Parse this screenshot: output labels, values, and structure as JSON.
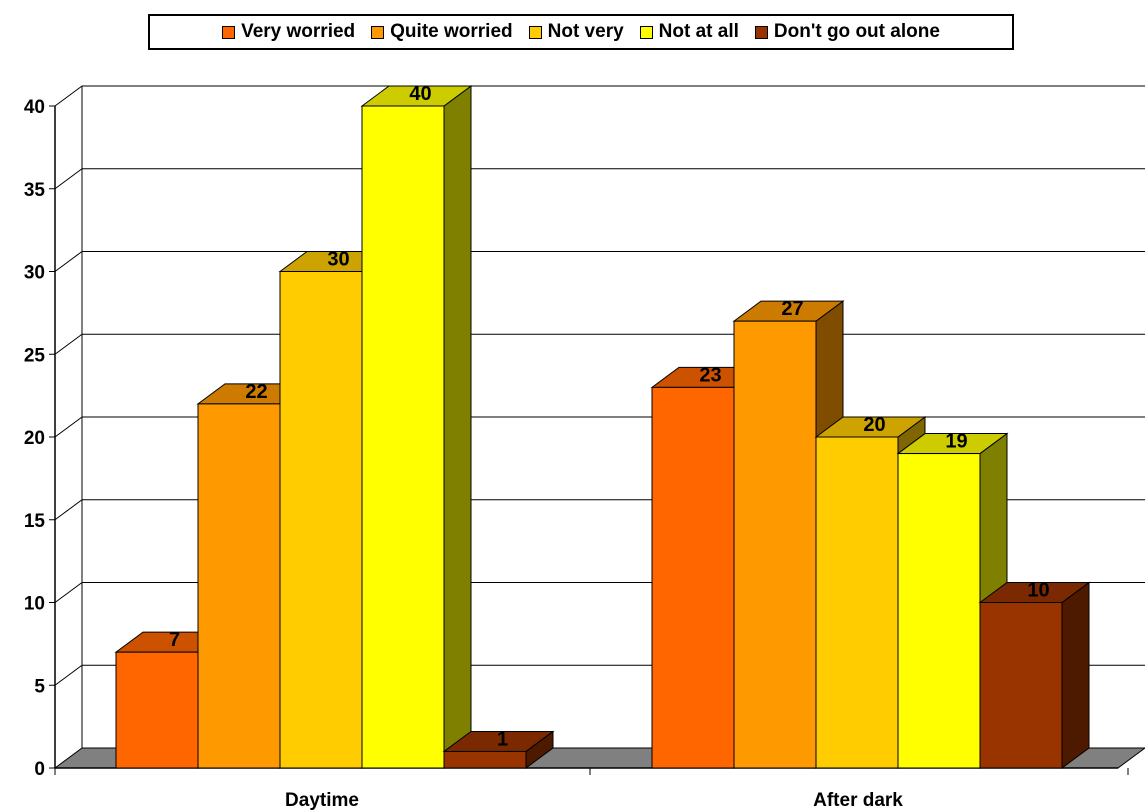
{
  "chart_data": {
    "type": "bar",
    "categories": [
      "Daytime",
      "After dark"
    ],
    "series": [
      {
        "name": "Very worried",
        "values": [
          7,
          23
        ],
        "color": "#FF6600"
      },
      {
        "name": "Quite worried",
        "values": [
          22,
          27
        ],
        "color": "#FF9900"
      },
      {
        "name": "Not very",
        "values": [
          30,
          20
        ],
        "color": "#FFCC00"
      },
      {
        "name": "Not at all",
        "values": [
          40,
          19
        ],
        "color": "#FFFF00"
      },
      {
        "name": "Don't go out alone",
        "values": [
          1,
          10
        ],
        "color": "#993300"
      }
    ],
    "title": "",
    "xlabel": "",
    "ylabel": "",
    "ylim": [
      0,
      40
    ],
    "yticks": [
      0,
      5,
      10,
      15,
      20,
      25,
      30,
      35,
      40
    ],
    "grid": true,
    "legend_position": "top",
    "three_d": true,
    "floor_color": "#808080"
  }
}
